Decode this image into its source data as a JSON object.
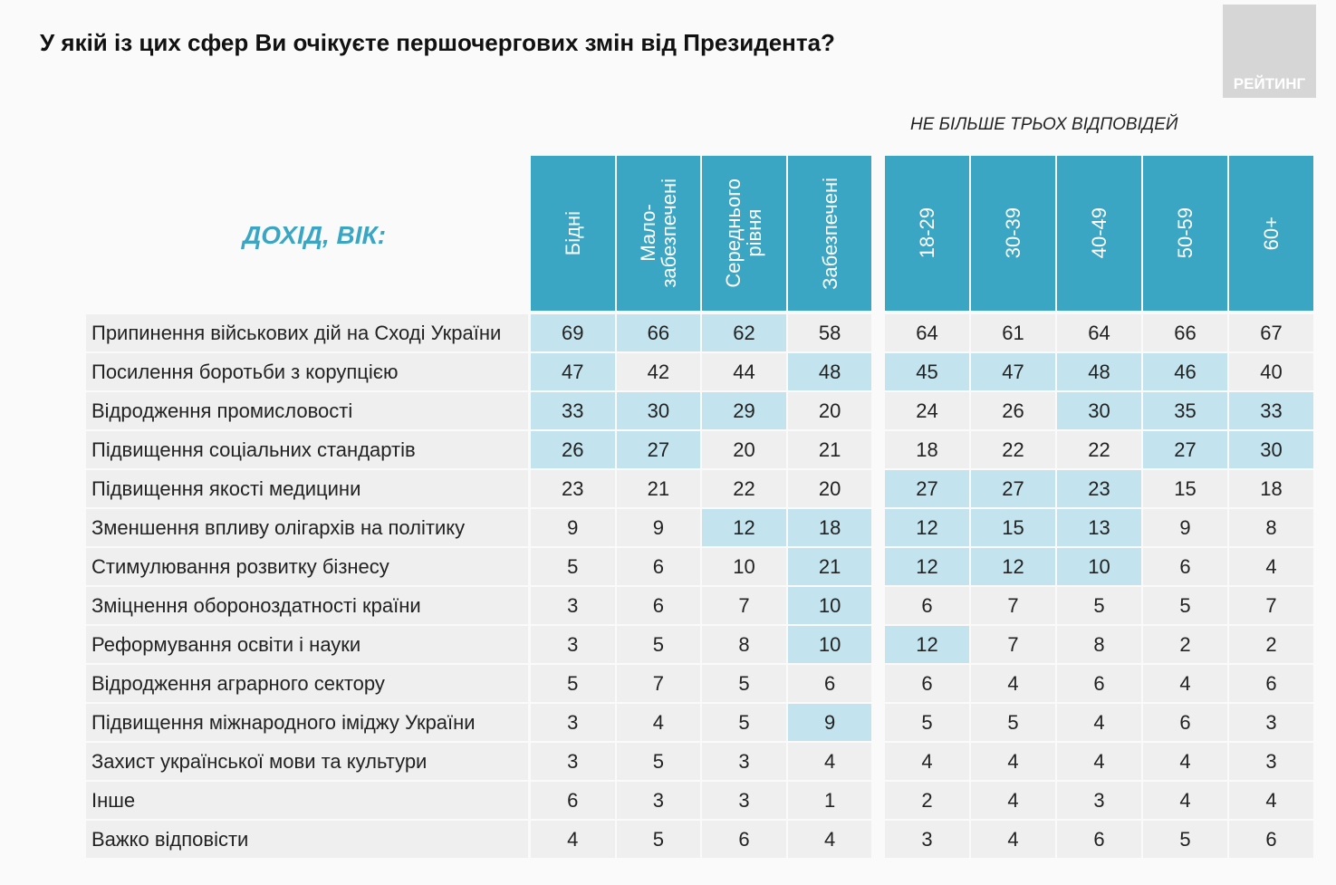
{
  "title": "У якій із цих сфер Ви очікуєте першочергових змін від Президента?",
  "logo": "РЕЙТИНГ",
  "note": "НЕ БІЛЬШЕ ТРЬОХ ВІДПОВІДЕЙ",
  "header_label": "ДОХІД, ВІК:",
  "columns": [
    {
      "lines": [
        "Бідні"
      ]
    },
    {
      "lines": [
        "Мало-",
        "забезпечені"
      ]
    },
    {
      "lines": [
        "Середнього",
        "рівня"
      ]
    },
    {
      "lines": [
        "Забезпечені"
      ]
    },
    {
      "lines": [
        "18-29"
      ]
    },
    {
      "lines": [
        "30-39"
      ]
    },
    {
      "lines": [
        "40-49"
      ]
    },
    {
      "lines": [
        "50-59"
      ]
    },
    {
      "lines": [
        "60+"
      ]
    }
  ],
  "rows": [
    {
      "label": "Припинення військових дій на Сході України",
      "values": [
        69,
        66,
        62,
        58,
        64,
        61,
        64,
        66,
        67
      ],
      "highlight": [
        true,
        true,
        true,
        false,
        false,
        false,
        false,
        false,
        false
      ]
    },
    {
      "label": "Посилення боротьби з корупцією",
      "values": [
        47,
        42,
        44,
        48,
        45,
        47,
        48,
        46,
        40
      ],
      "highlight": [
        true,
        false,
        false,
        true,
        true,
        true,
        true,
        true,
        false
      ]
    },
    {
      "label": "Відродження промисловості",
      "values": [
        33,
        30,
        29,
        20,
        24,
        26,
        30,
        35,
        33
      ],
      "highlight": [
        true,
        true,
        true,
        false,
        false,
        false,
        true,
        true,
        true
      ]
    },
    {
      "label": "Підвищення соціальних стандартів",
      "values": [
        26,
        27,
        20,
        21,
        18,
        22,
        22,
        27,
        30
      ],
      "highlight": [
        true,
        true,
        false,
        false,
        false,
        false,
        false,
        true,
        true
      ]
    },
    {
      "label": "Підвищення якості медицини",
      "values": [
        23,
        21,
        22,
        20,
        27,
        27,
        23,
        15,
        18
      ],
      "highlight": [
        false,
        false,
        false,
        false,
        true,
        true,
        true,
        false,
        false
      ]
    },
    {
      "label": "Зменшення впливу олігархів на політику",
      "values": [
        9,
        9,
        12,
        18,
        12,
        15,
        13,
        9,
        8
      ],
      "highlight": [
        false,
        false,
        true,
        true,
        true,
        true,
        true,
        false,
        false
      ]
    },
    {
      "label": "Стимулювання розвитку бізнесу",
      "values": [
        5,
        6,
        10,
        21,
        12,
        12,
        10,
        6,
        4
      ],
      "highlight": [
        false,
        false,
        false,
        true,
        true,
        true,
        true,
        false,
        false
      ]
    },
    {
      "label": "Зміцнення обороноздатності країни",
      "values": [
        3,
        6,
        7,
        10,
        6,
        7,
        5,
        5,
        7
      ],
      "highlight": [
        false,
        false,
        false,
        true,
        false,
        false,
        false,
        false,
        false
      ]
    },
    {
      "label": "Реформування освіти і науки",
      "values": [
        3,
        5,
        8,
        10,
        12,
        7,
        8,
        2,
        2
      ],
      "highlight": [
        false,
        false,
        false,
        true,
        true,
        false,
        false,
        false,
        false
      ]
    },
    {
      "label": "Відродження аграрного сектору",
      "values": [
        5,
        7,
        5,
        6,
        6,
        4,
        6,
        4,
        6
      ],
      "highlight": [
        false,
        false,
        false,
        false,
        false,
        false,
        false,
        false,
        false
      ]
    },
    {
      "label": "Підвищення міжнародного іміджу України",
      "values": [
        3,
        4,
        5,
        9,
        5,
        5,
        4,
        6,
        3
      ],
      "highlight": [
        false,
        false,
        false,
        true,
        false,
        false,
        false,
        false,
        false
      ]
    },
    {
      "label": "Захист української мови та культури",
      "values": [
        3,
        5,
        3,
        4,
        4,
        4,
        4,
        4,
        3
      ],
      "highlight": [
        false,
        false,
        false,
        false,
        false,
        false,
        false,
        false,
        false
      ]
    },
    {
      "label": "Інше",
      "values": [
        6,
        3,
        3,
        1,
        2,
        4,
        3,
        4,
        4
      ],
      "highlight": [
        false,
        false,
        false,
        false,
        false,
        false,
        false,
        false,
        false
      ]
    },
    {
      "label": "Важко відповісти",
      "values": [
        4,
        5,
        6,
        4,
        3,
        4,
        6,
        5,
        6
      ],
      "highlight": [
        false,
        false,
        false,
        false,
        false,
        false,
        false,
        false,
        false
      ]
    }
  ]
}
